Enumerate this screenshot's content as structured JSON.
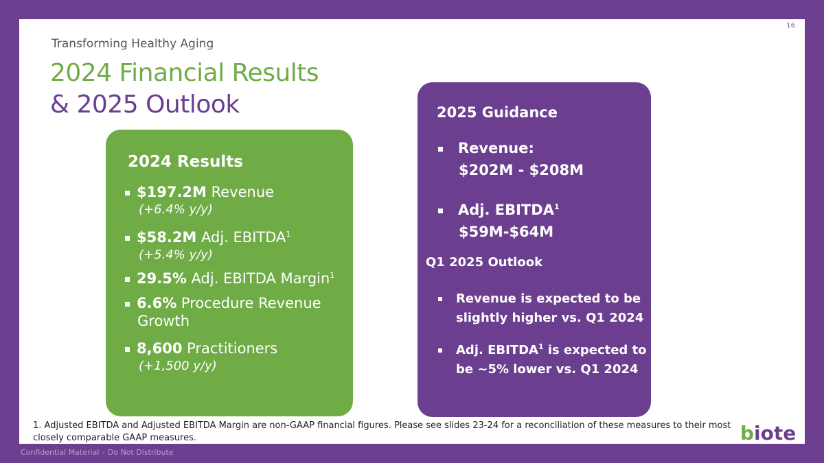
{
  "page_number": "16",
  "kicker": "Transforming Healthy Aging",
  "title_line1": "2024 Financial Results",
  "title_line2": "& 2025 Outlook",
  "results": {
    "heading": "2024 Results",
    "items": [
      {
        "bold": "$197.2M",
        "text": " Revenue",
        "sub": "(+6.4% y/y)"
      },
      {
        "bold": "$58.2M",
        "text": " Adj. EBITDA",
        "sup": "1",
        "sub": "(+5.4% y/y)"
      },
      {
        "bold": "29.5%",
        "text": " Adj. EBITDA Margin",
        "sup": "1"
      },
      {
        "bold": "6.6%",
        "text": " Procedure Revenue",
        "cont": "Growth"
      },
      {
        "bold": "8,600",
        "text": " Practitioners",
        "sub": "(+1,500 y/y)"
      }
    ]
  },
  "guidance": {
    "heading": "2025 Guidance",
    "revenue_label": "Revenue:",
    "revenue_value": "$202M - $208M",
    "ebitda_label": "Adj. EBITDA",
    "ebitda_sup": "1",
    "ebitda_value": "$59M-$64M",
    "q1_heading": "Q1 2025 Outlook",
    "q1_items": [
      {
        "line1": "Revenue is expected to be",
        "line2": "slightly higher vs. Q1 2024"
      },
      {
        "line1a": "Adj. EBITDA",
        "sup": "1",
        "line1b": " is expected to",
        "line2": "be ~5% lower vs. Q1 2024"
      }
    ]
  },
  "footnote": "1. Adjusted EBITDA and Adjusted EBITDA Margin are non-GAAP financial figures. Please see slides 23-24 for a reconciliation of these measures to their most closely comparable GAAP measures.",
  "logo": {
    "b": "b",
    "rest": "iote"
  },
  "confidential": "Confidential Material – Do Not Distribute"
}
